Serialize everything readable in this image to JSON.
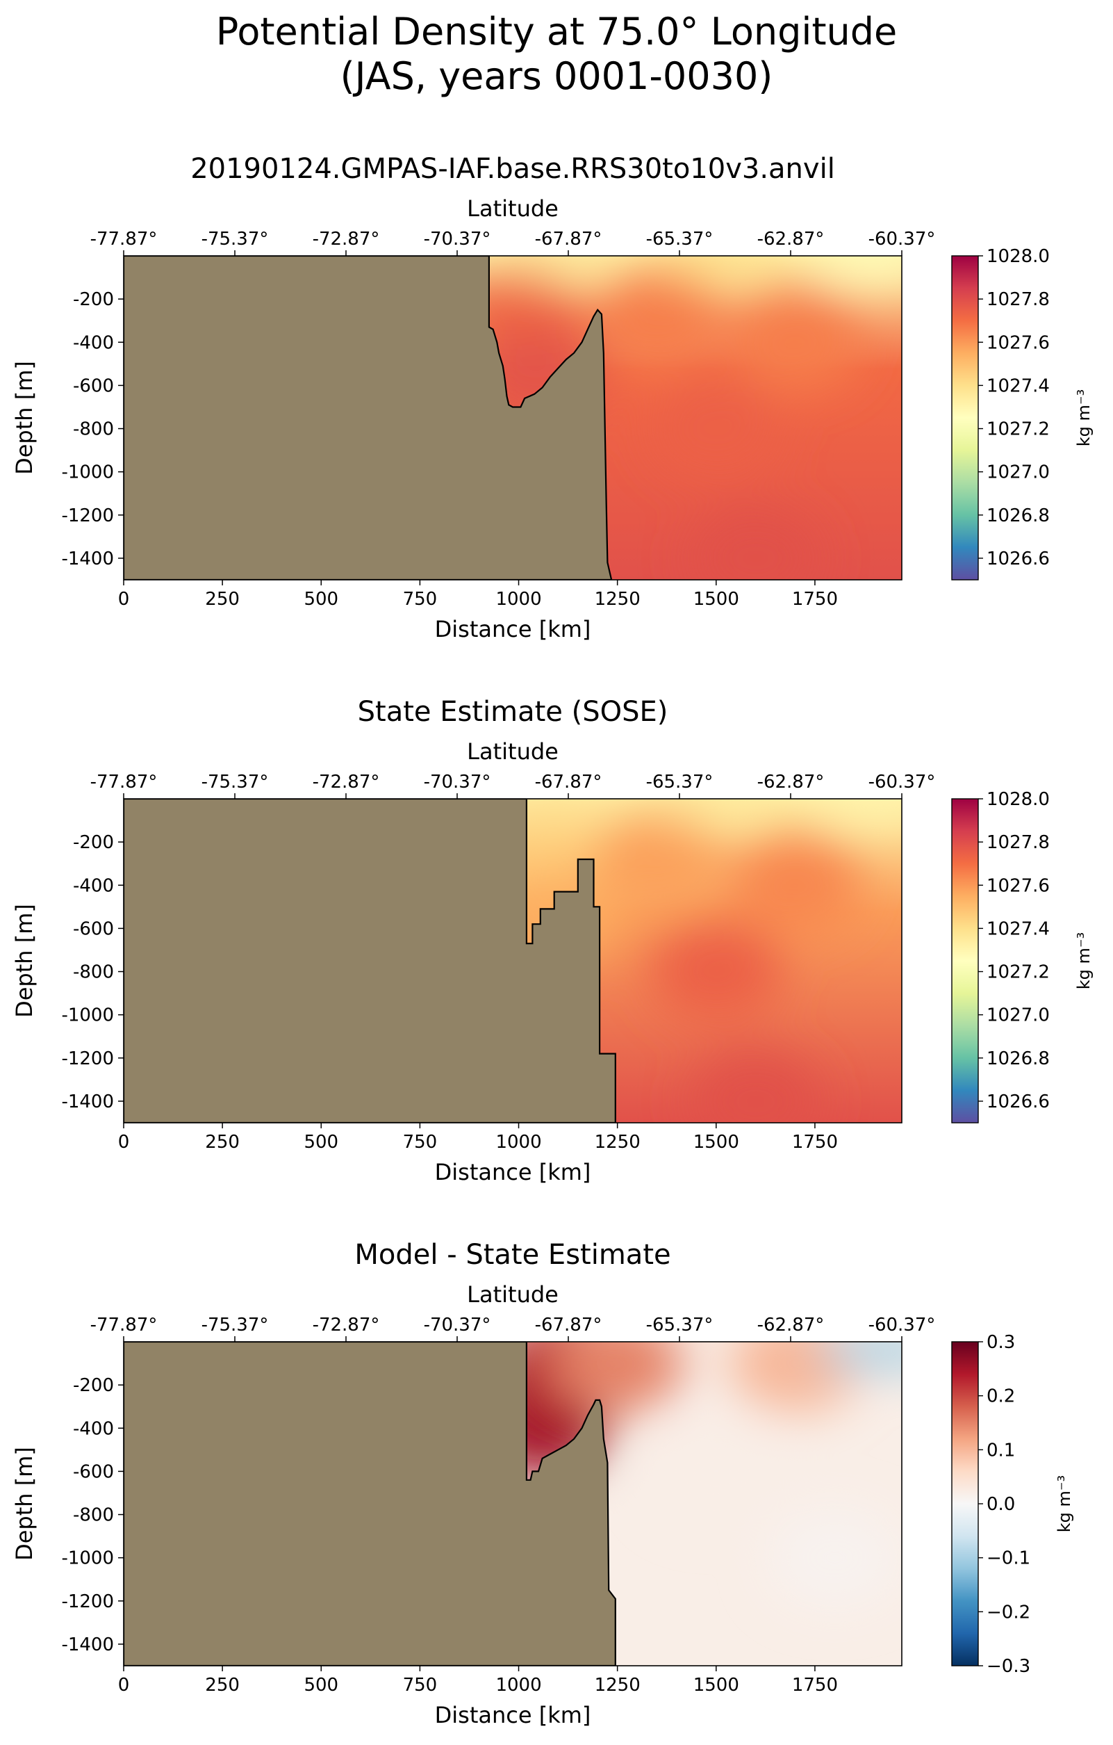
{
  "suptitle": {
    "line1": "Potential Density at 75.0° Longitude",
    "line2": "(JAS, years 0001-0030)"
  },
  "colors": {
    "land": "#918366",
    "outline": "#000000"
  },
  "chart_data": [
    {
      "type": "heatmap",
      "title": "20190124.GMPAS-IAF.base.RRS30to10v3.anvil",
      "xlabel": "Distance [km]",
      "ylabel": "Depth [m]",
      "top_xlabel": "Latitude",
      "xlim": [
        0,
        1970
      ],
      "ylim": [
        -1500,
        0
      ],
      "xticks": [
        "0",
        "250",
        "500",
        "750",
        "1000",
        "1250",
        "1500",
        "1750"
      ],
      "yticks": [
        "-200",
        "-400",
        "-600",
        "-800",
        "-1000",
        "-1200",
        "-1400"
      ],
      "top_ticks": [
        "-77.87°",
        "-75.37°",
        "-72.87°",
        "-70.37°",
        "-67.87°",
        "-65.37°",
        "-62.87°",
        "-60.37°"
      ],
      "colormap": "Spectral_r",
      "colorbar": {
        "label": "kg m⁻³",
        "range": [
          1026.5,
          1028.0
        ],
        "ticks": [
          "1028.0",
          "1027.8",
          "1027.6",
          "1027.4",
          "1027.2",
          "1027.0",
          "1026.8",
          "1026.6"
        ]
      },
      "field_points": [
        {
          "x": 1100,
          "y": -20,
          "value": 1027.35
        },
        {
          "x": 1500,
          "y": -20,
          "value": 1027.4
        },
        {
          "x": 1900,
          "y": -30,
          "value": 1027.25
        },
        {
          "x": 1000,
          "y": -300,
          "value": 1027.72
        },
        {
          "x": 1050,
          "y": -550,
          "value": 1027.78
        },
        {
          "x": 1350,
          "y": -300,
          "value": 1027.66
        },
        {
          "x": 1700,
          "y": -400,
          "value": 1027.66
        },
        {
          "x": 1500,
          "y": -800,
          "value": 1027.74
        },
        {
          "x": 1600,
          "y": -1400,
          "value": 1027.79
        }
      ],
      "topography": [
        [
          0,
          0
        ],
        [
          925,
          0
        ],
        [
          925,
          -330
        ],
        [
          935,
          -340
        ],
        [
          945,
          -400
        ],
        [
          950,
          -450
        ],
        [
          960,
          -510
        ],
        [
          965,
          -570
        ],
        [
          970,
          -650
        ],
        [
          975,
          -690
        ],
        [
          985,
          -700
        ],
        [
          1005,
          -700
        ],
        [
          1015,
          -660
        ],
        [
          1040,
          -640
        ],
        [
          1060,
          -610
        ],
        [
          1080,
          -560
        ],
        [
          1100,
          -520
        ],
        [
          1120,
          -480
        ],
        [
          1140,
          -450
        ],
        [
          1160,
          -400
        ],
        [
          1175,
          -340
        ],
        [
          1190,
          -280
        ],
        [
          1200,
          -250
        ],
        [
          1210,
          -270
        ],
        [
          1215,
          -450
        ],
        [
          1222,
          -1150
        ],
        [
          1225,
          -1420
        ],
        [
          1235,
          -1500
        ],
        [
          0,
          -1500
        ]
      ]
    },
    {
      "type": "heatmap",
      "title": "State Estimate (SOSE)",
      "xlabel": "Distance [km]",
      "ylabel": "Depth [m]",
      "top_xlabel": "Latitude",
      "xlim": [
        0,
        1970
      ],
      "ylim": [
        -1500,
        0
      ],
      "xticks": [
        "0",
        "250",
        "500",
        "750",
        "1000",
        "1250",
        "1500",
        "1750"
      ],
      "yticks": [
        "-200",
        "-400",
        "-600",
        "-800",
        "-1000",
        "-1200",
        "-1400"
      ],
      "top_ticks": [
        "-77.87°",
        "-75.37°",
        "-72.87°",
        "-70.37°",
        "-67.87°",
        "-65.37°",
        "-62.87°",
        "-60.37°"
      ],
      "colormap": "Spectral_r",
      "colorbar": {
        "label": "kg m⁻³",
        "range": [
          1026.5,
          1028.0
        ],
        "ticks": [
          "1028.0",
          "1027.8",
          "1027.6",
          "1027.4",
          "1027.2",
          "1027.0",
          "1026.8",
          "1026.6"
        ]
      },
      "field_points": [
        {
          "x": 1100,
          "y": -20,
          "value": 1027.35
        },
        {
          "x": 1500,
          "y": -20,
          "value": 1027.35
        },
        {
          "x": 1900,
          "y": -30,
          "value": 1027.3
        },
        {
          "x": 1080,
          "y": -300,
          "value": 1027.45
        },
        {
          "x": 1080,
          "y": -550,
          "value": 1027.55
        },
        {
          "x": 1350,
          "y": -300,
          "value": 1027.58
        },
        {
          "x": 1700,
          "y": -400,
          "value": 1027.64
        },
        {
          "x": 1500,
          "y": -800,
          "value": 1027.74
        },
        {
          "x": 1600,
          "y": -1400,
          "value": 1027.79
        }
      ],
      "topography": [
        [
          0,
          0
        ],
        [
          1020,
          0
        ],
        [
          1020,
          -670
        ],
        [
          1035,
          -670
        ],
        [
          1035,
          -580
        ],
        [
          1055,
          -580
        ],
        [
          1055,
          -510
        ],
        [
          1090,
          -510
        ],
        [
          1090,
          -430
        ],
        [
          1150,
          -430
        ],
        [
          1150,
          -280
        ],
        [
          1190,
          -280
        ],
        [
          1190,
          -500
        ],
        [
          1205,
          -500
        ],
        [
          1205,
          -1180
        ],
        [
          1245,
          -1180
        ],
        [
          1245,
          -1500
        ],
        [
          0,
          -1500
        ]
      ]
    },
    {
      "type": "heatmap",
      "title": "Model - State Estimate",
      "xlabel": "Distance [km]",
      "ylabel": "Depth [m]",
      "top_xlabel": "Latitude",
      "xlim": [
        0,
        1970
      ],
      "ylim": [
        -1500,
        0
      ],
      "xticks": [
        "0",
        "250",
        "500",
        "750",
        "1000",
        "1250",
        "1500",
        "1750"
      ],
      "yticks": [
        "-200",
        "-400",
        "-600",
        "-800",
        "-1000",
        "-1200",
        "-1400"
      ],
      "top_ticks": [
        "-77.87°",
        "-75.37°",
        "-72.87°",
        "-70.37°",
        "-67.87°",
        "-65.37°",
        "-62.87°",
        "-60.37°"
      ],
      "colormap": "RdBu_r",
      "colorbar": {
        "label": "kg m⁻³",
        "range": [
          -0.3,
          0.3
        ],
        "ticks": [
          "0.3",
          "0.2",
          "0.1",
          "0.0",
          "−0.1",
          "−0.2",
          "−0.3"
        ]
      },
      "field_points": [
        {
          "x": 1080,
          "y": -190,
          "value": 0.3
        },
        {
          "x": 1060,
          "y": -400,
          "value": 0.25
        },
        {
          "x": 1130,
          "y": -80,
          "value": 0.22
        },
        {
          "x": 1250,
          "y": -100,
          "value": 0.15
        },
        {
          "x": 1700,
          "y": -100,
          "value": 0.1
        },
        {
          "x": 1920,
          "y": -40,
          "value": -0.1
        },
        {
          "x": 1500,
          "y": -600,
          "value": 0.02
        },
        {
          "x": 1800,
          "y": -1000,
          "value": 0.01
        }
      ],
      "topography": [
        [
          0,
          0
        ],
        [
          1020,
          0
        ],
        [
          1020,
          -640
        ],
        [
          1030,
          -640
        ],
        [
          1035,
          -600
        ],
        [
          1050,
          -600
        ],
        [
          1060,
          -540
        ],
        [
          1080,
          -520
        ],
        [
          1100,
          -500
        ],
        [
          1120,
          -480
        ],
        [
          1140,
          -450
        ],
        [
          1160,
          -400
        ],
        [
          1175,
          -340
        ],
        [
          1190,
          -290
        ],
        [
          1195,
          -270
        ],
        [
          1205,
          -270
        ],
        [
          1210,
          -300
        ],
        [
          1215,
          -450
        ],
        [
          1225,
          -560
        ],
        [
          1228,
          -1150
        ],
        [
          1245,
          -1190
        ],
        [
          1245,
          -1500
        ],
        [
          0,
          -1500
        ]
      ]
    }
  ]
}
